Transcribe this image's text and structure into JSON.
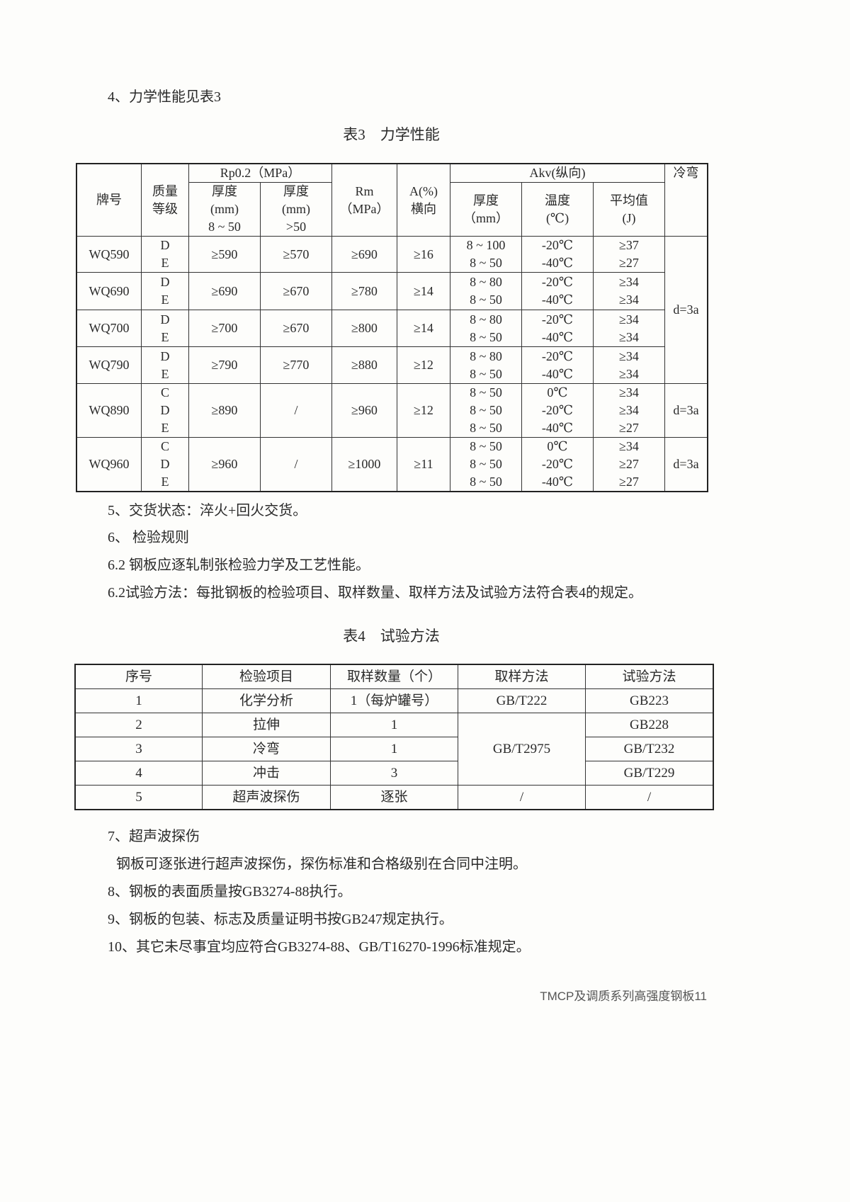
{
  "sections": {
    "s4": "4、力学性能见表3",
    "s5": "5、交货状态：淬火+回火交货。",
    "s6": "6、 检验规则",
    "s62a": "6.2 钢板应逐轧制张检验力学及工艺性能。",
    "s62b": "6.2试验方法：每批钢板的检验项目、取样数量、取样方法及试验方法符合表4的规定。",
    "s7": "7、超声波探伤",
    "s7body": "钢板可逐张进行超声波探伤，探伤标准和合格级别在合同中注明。",
    "s8": "8、钢板的表面质量按GB3274-88执行。",
    "s9": "9、钢板的包装、标志及质量证明书按GB247规定执行。",
    "s10": "10、其它未尽事宜均应符合GB3274-88、GB/T16270-1996标准规定。"
  },
  "table3": {
    "caption": "表3　力学性能",
    "headers": {
      "grade": "牌号",
      "quality": [
        "质量",
        "等级"
      ],
      "rp": "Rp0.2（MPa）",
      "rp_t1": [
        "厚度",
        "(mm)",
        "8 ~ 50"
      ],
      "rp_t2": [
        "厚度",
        "(mm)",
        ">50"
      ],
      "rm": [
        "Rm",
        "（MPa）"
      ],
      "a": [
        "A(%)",
        "横向"
      ],
      "akv": "Akv(纵向)",
      "akv_t": [
        "厚度",
        "（mm）"
      ],
      "akv_temp": [
        "温度",
        "(℃)"
      ],
      "akv_avg": [
        "平均值",
        "(J)"
      ],
      "bend": "冷弯"
    },
    "rows": [
      {
        "grade": "WQ590",
        "quality": [
          "D",
          "E"
        ],
        "rp1": "≥590",
        "rp2": "≥570",
        "rm": "≥690",
        "a": "≥16",
        "thk": [
          "8 ~ 100",
          "8 ~ 50"
        ],
        "temp": [
          "-20℃",
          "-40℃"
        ],
        "avg": [
          "≥37",
          "≥27"
        ]
      },
      {
        "grade": "WQ690",
        "quality": [
          "D",
          "E"
        ],
        "rp1": "≥690",
        "rp2": "≥670",
        "rm": "≥780",
        "a": "≥14",
        "thk": [
          "8 ~ 80",
          "8 ~ 50"
        ],
        "temp": [
          "-20℃",
          "-40℃"
        ],
        "avg": [
          "≥34",
          "≥34"
        ]
      },
      {
        "grade": "WQ700",
        "quality": [
          "D",
          "E"
        ],
        "rp1": "≥700",
        "rp2": "≥670",
        "rm": "≥800",
        "a": "≥14",
        "thk": [
          "8 ~ 80",
          "8 ~ 50"
        ],
        "temp": [
          "-20℃",
          "-40℃"
        ],
        "avg": [
          "≥34",
          "≥34"
        ]
      },
      {
        "grade": "WQ790",
        "quality": [
          "D",
          "E"
        ],
        "rp1": "≥790",
        "rp2": "≥770",
        "rm": "≥880",
        "a": "≥12",
        "thk": [
          "8 ~ 80",
          "8 ~ 50"
        ],
        "temp": [
          "-20℃",
          "-40℃"
        ],
        "avg": [
          "≥34",
          "≥34"
        ]
      },
      {
        "grade": "WQ890",
        "quality": [
          "C",
          "D",
          "E"
        ],
        "rp1": "≥890",
        "rp2": "/",
        "rm": "≥960",
        "a": "≥12",
        "thk": [
          "8 ~ 50",
          "8 ~ 50",
          "8 ~ 50"
        ],
        "temp": [
          "0℃",
          "-20℃",
          "-40℃"
        ],
        "avg": [
          "≥34",
          "≥34",
          "≥27"
        ]
      },
      {
        "grade": "WQ960",
        "quality": [
          "C",
          "D",
          "E"
        ],
        "rp1": "≥960",
        "rp2": "/",
        "rm": "≥1000",
        "a": "≥11",
        "thk": [
          "8 ~ 50",
          "8 ~ 50",
          "8 ~ 50"
        ],
        "temp": [
          "0℃",
          "-20℃",
          "-40℃"
        ],
        "avg": [
          "≥34",
          "≥27",
          "≥27"
        ]
      }
    ],
    "bend": [
      "d=3a",
      "d=3a",
      "d=3a"
    ]
  },
  "table4": {
    "caption": "表4　试验方法",
    "headers": [
      "序号",
      "检验项目",
      "取样数量（个）",
      "取样方法",
      "试验方法"
    ],
    "rows": [
      {
        "no": "1",
        "item": "化学分析",
        "qty": "1（每炉罐号）",
        "sampling": "GB/T222",
        "method": "GB223"
      },
      {
        "no": "2",
        "item": "拉伸",
        "qty": "1",
        "sampling": "GB/T2975",
        "method": "GB228"
      },
      {
        "no": "3",
        "item": "冷弯",
        "qty": "1",
        "sampling": "",
        "method": "GB/T232"
      },
      {
        "no": "4",
        "item": "冲击",
        "qty": "3",
        "sampling": "",
        "method": "GB/T229"
      },
      {
        "no": "5",
        "item": "超声波探伤",
        "qty": "逐张",
        "sampling": "/",
        "method": "/"
      }
    ]
  },
  "footer": "TMCP及调质系列高强度钢板11"
}
